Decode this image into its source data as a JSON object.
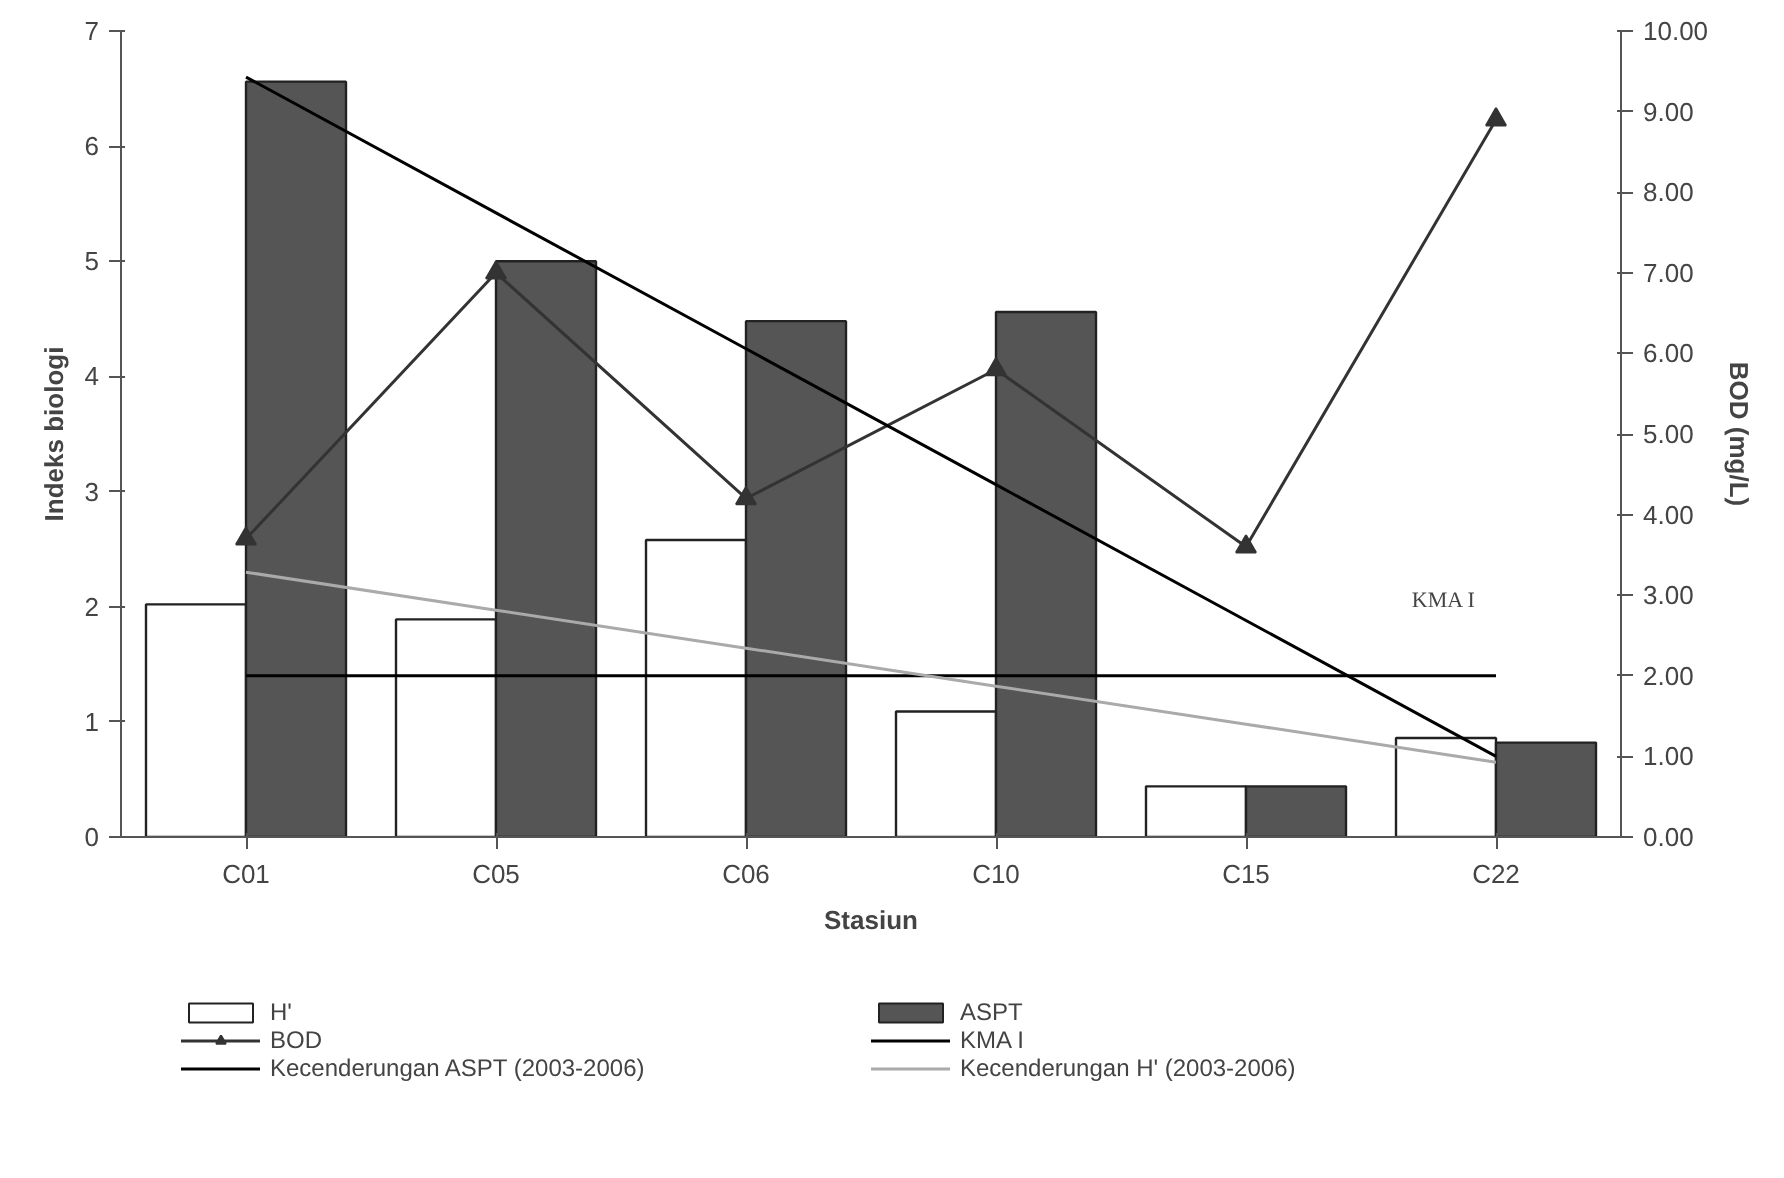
{
  "chart_data": {
    "type": "bar",
    "xlabel": "Stasiun",
    "ylabel": "Indeks biologi",
    "y2label": "BOD (mg/L)",
    "categories": [
      "C01",
      "C05",
      "C06",
      "C10",
      "C15",
      "C22"
    ],
    "series": [
      {
        "name": "H'",
        "color": "#ffffff",
        "values": [
          2.02,
          1.89,
          2.58,
          1.09,
          0.44,
          0.86
        ]
      },
      {
        "name": "ASPT",
        "color": "#555555",
        "values": [
          6.56,
          5.0,
          4.48,
          4.56,
          0.44,
          0.82
        ]
      },
      {
        "name": "BOD",
        "type": "line",
        "axis": "y2",
        "marker": "triangle",
        "color": "#333333",
        "values": [
          3.7,
          7.0,
          4.2,
          5.8,
          3.6,
          8.9
        ]
      },
      {
        "name": "KMA I",
        "type": "line",
        "axis": "y2",
        "color": "#000000",
        "values": [
          2.0,
          2.0,
          2.0,
          2.0,
          2.0,
          2.0
        ]
      },
      {
        "name": "Kecenderungan ASPT (2003-2006)",
        "type": "line",
        "color": "#000000",
        "values": [
          6.6,
          5.42,
          4.24,
          3.06,
          1.88,
          0.7
        ]
      },
      {
        "name": "Kecenderungan H' (2003-2006)",
        "type": "line",
        "color": "#aaaaaa",
        "values": [
          2.3,
          1.97,
          1.64,
          1.31,
          0.98,
          0.65
        ]
      }
    ],
    "annotations": [
      "KMA I"
    ],
    "ylim": [
      0,
      7
    ],
    "yticks": [
      0,
      1,
      2,
      3,
      4,
      5,
      6,
      7
    ],
    "y2lim": [
      0,
      10
    ],
    "y2ticks": [
      {
        "value": 0,
        "label": "0.00"
      },
      {
        "value": 1,
        "label": "1.00"
      },
      {
        "value": 2,
        "label": "2.00"
      },
      {
        "value": 3,
        "label": "3.00"
      },
      {
        "value": 4,
        "label": "4.00"
      },
      {
        "value": 5,
        "label": "5.00"
      },
      {
        "value": 6,
        "label": "6.00"
      },
      {
        "value": 7,
        "label": "7.00"
      },
      {
        "value": 8,
        "label": "8.00"
      },
      {
        "value": 9,
        "label": "9.00"
      },
      {
        "value": 10,
        "label": "10.00"
      }
    ],
    "legend": "bottom",
    "grid": false
  }
}
